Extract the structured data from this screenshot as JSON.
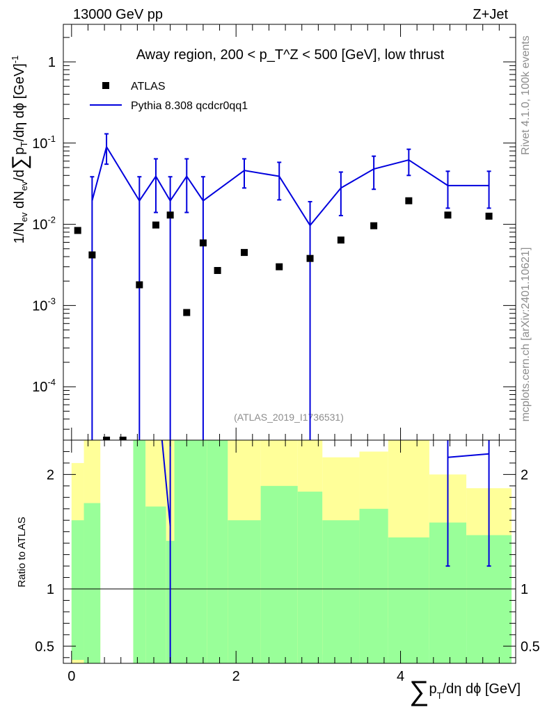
{
  "header": {
    "energy_label": "13000 GeV pp",
    "process_label": "Z+Jet"
  },
  "side_labels": {
    "rivet": "Rivet 4.1.0,  100k events",
    "site": "mcplots.cern.ch [arXiv:2401.10621]"
  },
  "chart_data": [
    {
      "name": "main",
      "type": "scatter",
      "title": "Away region, 200 < p_T^Z < 500 [GeV], low thrust",
      "ylabel": "1/N_ev dN_ev/d∑p_T/dη dϕ [GeV]^-1",
      "xlabel": "∑p_T/dη dϕ [GeV]",
      "yscale": "log",
      "xlim": [
        -0.1,
        5.4
      ],
      "ylim": [
        2.2e-05,
        2.9
      ],
      "xticks": [
        "0",
        "2",
        "4"
      ],
      "yticks": [
        "10^-4",
        "10^-3",
        "10^-2",
        "10^-1",
        "1"
      ],
      "analysis_id": "(ATLAS_2019_I1736531)",
      "legend": [
        "ATLAS",
        "Pythia 8.308 qcdcr0qq1"
      ],
      "colors": {
        "data": "#000000",
        "mc": "#0000dd"
      },
      "data": {
        "x": [
          0.075,
          0.25,
          0.425,
          0.625,
          0.825,
          1.025,
          1.2,
          1.4,
          1.6,
          1.775,
          2.1,
          2.525,
          2.9,
          3.275,
          3.675,
          4.1,
          4.575,
          5.075
        ],
        "y": [
          0.0084,
          0.0042,
          2.2e-05,
          2.2e-05,
          0.0018,
          0.0098,
          0.013,
          0.00082,
          0.0059,
          0.0027,
          0.0045,
          0.003,
          0.0038,
          0.0064,
          0.0096,
          0.0195,
          0.013,
          0.0126
        ]
      },
      "mc": {
        "x": [
          0.25,
          0.425,
          0.825,
          1.025,
          1.2,
          1.4,
          1.6,
          2.1,
          2.525,
          2.9,
          3.275,
          3.675,
          4.1,
          4.575,
          5.075
        ],
        "y": [
          0.0195,
          0.09,
          0.0195,
          0.039,
          0.0195,
          0.039,
          0.0195,
          0.046,
          0.039,
          0.0097,
          0.028,
          0.048,
          0.062,
          0.03,
          0.03
        ],
        "err_up": [
          0.0385,
          0.13,
          0.0385,
          0.064,
          0.0385,
          0.064,
          0.0385,
          0.064,
          0.058,
          0.019,
          0.044,
          0.069,
          0.084,
          0.045,
          0.045
        ],
        "err_down": [
          1e-06,
          0.055,
          1e-06,
          0.014,
          1e-06,
          0.014,
          1e-06,
          0.028,
          0.02,
          1e-06,
          0.0128,
          0.027,
          0.04,
          0.0158,
          0.0158
        ]
      }
    },
    {
      "name": "ratio",
      "type": "area",
      "ylabel": "Ratio to ATLAS",
      "xlim": [
        -0.1,
        5.4
      ],
      "ylim": [
        0.35,
        2.3
      ],
      "yticks": [
        "0.5",
        "1",
        "2"
      ],
      "reference_line": 1,
      "colors": {
        "outer_band": "#ffff99",
        "inner_band": "#99ff99",
        "mc": "#0000dd"
      },
      "bands": {
        "edges": [
          0.0,
          0.15,
          0.35,
          0.5,
          0.75,
          0.9,
          1.15,
          1.25,
          1.55,
          1.65,
          1.9,
          2.3,
          2.75,
          3.05,
          3.5,
          3.85,
          4.35,
          4.8,
          5.35
        ],
        "outer_low": [
          0.35,
          0.35,
          null,
          null,
          0.35,
          0.35,
          0.47,
          0.35,
          0.35,
          0.35,
          0.38,
          0.35,
          0.35,
          0.43,
          0.35,
          0.66,
          0.47,
          0.63
        ],
        "outer_high": [
          2.1,
          2.3,
          null,
          null,
          2.3,
          2.3,
          2.3,
          2.3,
          2.3,
          2.3,
          2.3,
          2.3,
          2.3,
          2.15,
          2.2,
          2.3,
          2.0,
          1.88
        ],
        "inner_low": [
          0.38,
          0.35,
          null,
          null,
          0.35,
          0.35,
          0.35,
          0.35,
          0.35,
          0.35,
          0.35,
          0.35,
          0.35,
          0.35,
          0.35,
          0.35,
          0.35,
          0.35
        ],
        "inner_high": [
          1.6,
          1.75,
          null,
          null,
          2.3,
          1.72,
          1.42,
          2.3,
          2.3,
          2.3,
          1.6,
          1.9,
          1.85,
          1.6,
          1.7,
          1.45,
          1.58,
          1.47
        ]
      },
      "mc": {
        "x": [
          1.1,
          1.2,
          4.575,
          5.075
        ],
        "y": [
          2.3,
          1.55,
          2.15,
          2.18
        ],
        "err_top": [
          null,
          2.3,
          2.3,
          2.3
        ],
        "err_low": [
          null,
          0.35,
          1.2,
          1.2
        ]
      }
    }
  ]
}
